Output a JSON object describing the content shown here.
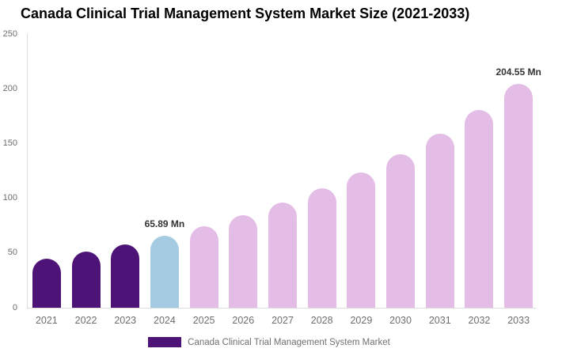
{
  "title": "Canada Clinical Trial Management System Market Size (2021-2033)",
  "legend": {
    "label": "Canada Clinical Trial Management System Market",
    "swatch_color": "#4d1376"
  },
  "chart_data": {
    "type": "bar",
    "title": "Canada Clinical Trial Management System Market Size (2021-2033)",
    "categories": [
      "2021",
      "2022",
      "2023",
      "2024",
      "2025",
      "2026",
      "2027",
      "2028",
      "2029",
      "2030",
      "2031",
      "2032",
      "2033"
    ],
    "values": [
      45.0,
      51.2,
      58.1,
      65.89,
      74.7,
      84.7,
      96.1,
      109.0,
      123.6,
      140.2,
      159.0,
      180.3,
      204.55
    ],
    "unit": "Mn",
    "bar_colors": [
      "#4d1376",
      "#4d1376",
      "#4d1376",
      "#a4cbe1",
      "#e4bde7",
      "#e4bde7",
      "#e4bde7",
      "#e4bde7",
      "#e4bde7",
      "#e4bde7",
      "#e4bde7",
      "#e4bde7",
      "#e4bde7"
    ],
    "color_roles": {
      "historical": "#4d1376",
      "base_year": "#a4cbe1",
      "forecast": "#e4bde7"
    },
    "annotations": [
      {
        "category": "2024",
        "text": "65.89 Mn"
      },
      {
        "category": "2033",
        "text": "204.55 Mn"
      }
    ],
    "yticks": [
      0,
      50,
      100,
      150,
      200,
      250
    ],
    "ylim": [
      0,
      250
    ],
    "xlabel": "",
    "ylabel": "",
    "grid": false,
    "legend_position": "bottom",
    "legend_entries": [
      "Canada Clinical Trial Management System Market"
    ],
    "axis_tick_color": "#6e6e6e",
    "axis_line_color": "#dcdcdc"
  }
}
